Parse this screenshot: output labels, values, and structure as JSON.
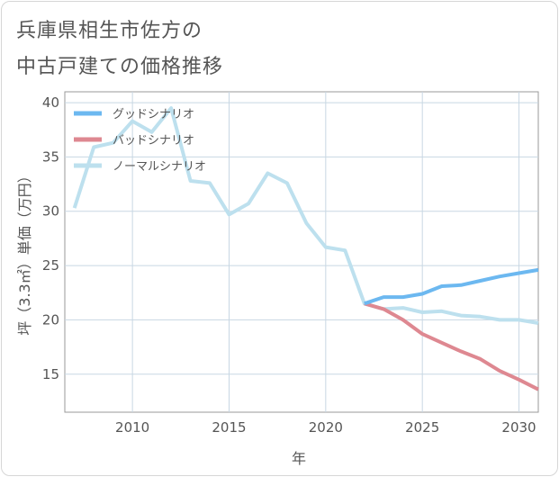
{
  "title_line1": "兵庫県相生市佐方の",
  "title_line2": "中古戸建ての価格推移",
  "chart_data": {
    "type": "line",
    "title": "兵庫県相生市佐方の中古戸建ての価格推移",
    "xlabel": "年",
    "ylabel": "坪（3.3㎡）単価（万円）",
    "xlim": [
      2006.5,
      2031
    ],
    "ylim": [
      11.5,
      41
    ],
    "xticks": [
      2010,
      2015,
      2020,
      2025,
      2030
    ],
    "yticks": [
      15,
      20,
      25,
      30,
      35,
      40
    ],
    "grid": true,
    "legend_position": "top-left",
    "series": [
      {
        "name": "グッドシナリオ",
        "color": "#6cb8f0",
        "x": [
          2022,
          2023,
          2024,
          2025,
          2026,
          2027,
          2028,
          2029,
          2030,
          2031
        ],
        "values": [
          21.5,
          22.1,
          22.1,
          22.4,
          23.1,
          23.2,
          23.6,
          24.0,
          24.3,
          24.6
        ]
      },
      {
        "name": "バッドシナリオ",
        "color": "#de8891",
        "x": [
          2022,
          2023,
          2024,
          2025,
          2026,
          2027,
          2028,
          2029,
          2030,
          2031
        ],
        "values": [
          21.5,
          21.0,
          20.0,
          18.7,
          17.9,
          17.1,
          16.4,
          15.3,
          14.5,
          13.6
        ]
      },
      {
        "name": "ノーマルシナリオ",
        "color": "#bde0ee",
        "x": [
          2007,
          2008,
          2009,
          2010,
          2011,
          2012,
          2013,
          2014,
          2015,
          2016,
          2017,
          2018,
          2019,
          2020,
          2021,
          2022,
          2023,
          2024,
          2025,
          2026,
          2027,
          2028,
          2029,
          2030,
          2031
        ],
        "values": [
          30.3,
          35.9,
          36.3,
          38.3,
          37.3,
          39.5,
          32.8,
          32.6,
          29.7,
          30.7,
          33.5,
          32.6,
          28.9,
          26.7,
          26.4,
          21.5,
          21.0,
          21.1,
          20.7,
          20.8,
          20.4,
          20.3,
          20.0,
          20.0,
          19.7
        ]
      }
    ]
  }
}
